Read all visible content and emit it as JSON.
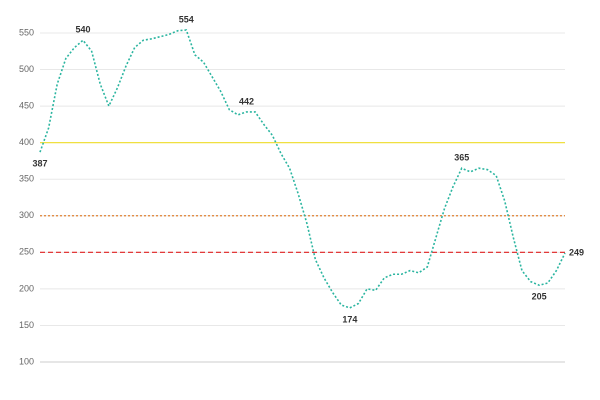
{
  "chart_data": {
    "type": "line",
    "ylim": [
      100,
      580
    ],
    "yticks": [
      100,
      150,
      200,
      250,
      300,
      350,
      400,
      450,
      500,
      550
    ],
    "grid": true,
    "reference_lines": [
      {
        "value": 400,
        "color": "#f0e040",
        "style": "solid"
      },
      {
        "value": 300,
        "color": "#e08030",
        "style": "dotted"
      },
      {
        "value": 250,
        "color": "#e02020",
        "style": "dashed"
      }
    ],
    "series": [
      {
        "color": "#2bb5a0",
        "values": [
          387,
          420,
          480,
          515,
          530,
          540,
          525,
          480,
          450,
          475,
          505,
          530,
          540,
          542,
          545,
          548,
          553,
          554,
          520,
          510,
          490,
          470,
          445,
          438,
          442,
          442,
          425,
          410,
          385,
          365,
          330,
          290,
          240,
          215,
          195,
          178,
          174,
          180,
          200,
          198,
          215,
          220,
          220,
          225,
          222,
          230,
          270,
          310,
          340,
          365,
          360,
          365,
          363,
          355,
          320,
          270,
          225,
          210,
          205,
          208,
          225,
          249
        ],
        "value_labels": [
          "387",
          null,
          null,
          null,
          null,
          "540",
          null,
          null,
          null,
          null,
          null,
          null,
          null,
          null,
          null,
          null,
          null,
          "554",
          null,
          null,
          null,
          null,
          null,
          null,
          "442",
          null,
          null,
          null,
          null,
          null,
          null,
          null,
          null,
          null,
          null,
          null,
          "174",
          null,
          null,
          null,
          null,
          null,
          null,
          null,
          null,
          null,
          null,
          null,
          null,
          "365",
          null,
          null,
          null,
          null,
          null,
          null,
          null,
          null,
          "205",
          null,
          null,
          "249"
        ]
      }
    ]
  }
}
